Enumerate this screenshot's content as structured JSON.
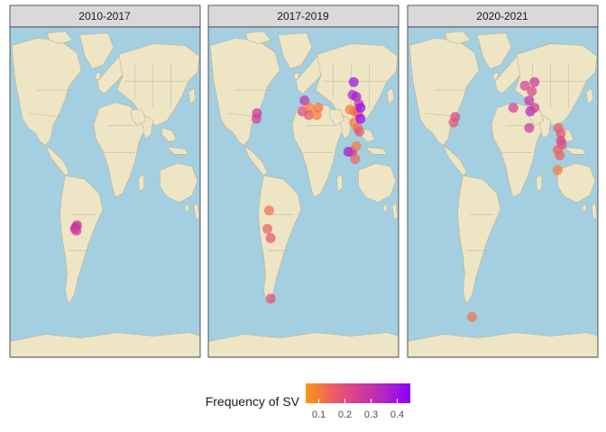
{
  "chart_data": {
    "type": "scatter",
    "kind": "faceted-world-map",
    "facets": [
      {
        "label": "2010-2017",
        "points": [
          {
            "lon": -55,
            "lat": -19,
            "value": 0.3
          },
          {
            "lon": -53,
            "lat": -18,
            "value": 0.28
          },
          {
            "lon": -57,
            "lat": -20,
            "value": 0.32
          },
          {
            "lon": -54,
            "lat": -21,
            "value": 0.25
          }
        ]
      },
      {
        "label": "2017-2019",
        "points": [
          {
            "lon": -88,
            "lat": 43,
            "value": 0.28
          },
          {
            "lon": -89,
            "lat": 40,
            "value": 0.25
          },
          {
            "lon": 2,
            "lat": 50,
            "value": 0.3
          },
          {
            "lon": -2,
            "lat": 44,
            "value": 0.22
          },
          {
            "lon": 12,
            "lat": 46,
            "value": 0.1
          },
          {
            "lon": 10,
            "lat": 42,
            "value": 0.18
          },
          {
            "lon": 25,
            "lat": 42,
            "value": 0.1
          },
          {
            "lon": 28,
            "lat": 46,
            "value": 0.12
          },
          {
            "lon": 95,
            "lat": 60,
            "value": 0.4
          },
          {
            "lon": 93,
            "lat": 53,
            "value": 0.35
          },
          {
            "lon": 100,
            "lat": 52,
            "value": 0.38
          },
          {
            "lon": 105,
            "lat": 48,
            "value": 0.3
          },
          {
            "lon": 88,
            "lat": 45,
            "value": 0.1
          },
          {
            "lon": 97,
            "lat": 44,
            "value": 0.12
          },
          {
            "lon": 103,
            "lat": 43,
            "value": 0.15
          },
          {
            "lon": 108,
            "lat": 46,
            "value": 0.42
          },
          {
            "lon": 96,
            "lat": 38,
            "value": 0.1
          },
          {
            "lon": 102,
            "lat": 35,
            "value": 0.12
          },
          {
            "lon": 106,
            "lat": 33,
            "value": 0.18
          },
          {
            "lon": 108,
            "lat": 40,
            "value": 0.45
          },
          {
            "lon": 85,
            "lat": 22,
            "value": 0.38
          },
          {
            "lon": 92,
            "lat": 22,
            "value": 0.3
          },
          {
            "lon": 100,
            "lat": 25,
            "value": 0.1
          },
          {
            "lon": 98,
            "lat": 18,
            "value": 0.14
          },
          {
            "lon": -65,
            "lat": -10,
            "value": 0.12
          },
          {
            "lon": -68,
            "lat": -20,
            "value": 0.15
          },
          {
            "lon": -62,
            "lat": -25,
            "value": 0.18
          },
          {
            "lon": -62,
            "lat": -58,
            "value": 0.2
          }
        ]
      },
      {
        "label": "2020-2021",
        "points": [
          {
            "lon": -90,
            "lat": 41,
            "value": 0.22
          },
          {
            "lon": -93,
            "lat": 38,
            "value": 0.18
          },
          {
            "lon": 20,
            "lat": 46,
            "value": 0.25
          },
          {
            "lon": 42,
            "lat": 58,
            "value": 0.25
          },
          {
            "lon": 50,
            "lat": 50,
            "value": 0.3
          },
          {
            "lon": 55,
            "lat": 55,
            "value": 0.22
          },
          {
            "lon": 60,
            "lat": 60,
            "value": 0.28
          },
          {
            "lon": 52,
            "lat": 44,
            "value": 0.35
          },
          {
            "lon": 60,
            "lat": 46,
            "value": 0.26
          },
          {
            "lon": 50,
            "lat": 35,
            "value": 0.28
          },
          {
            "lon": 105,
            "lat": 35,
            "value": 0.15
          },
          {
            "lon": 110,
            "lat": 32,
            "value": 0.18
          },
          {
            "lon": 112,
            "lat": 26,
            "value": 0.2
          },
          {
            "lon": 104,
            "lat": 23,
            "value": 0.16
          },
          {
            "lon": 108,
            "lat": 20,
            "value": 0.14
          },
          {
            "lon": 104,
            "lat": 12,
            "value": 0.1
          },
          {
            "lon": 110,
            "lat": 28,
            "value": 0.22
          },
          {
            "lon": -58,
            "lat": -68,
            "value": 0.12
          }
        ]
      }
    ],
    "legend": {
      "title": "Frequency of SV",
      "position": "bottom",
      "range": [
        0.05,
        0.45
      ],
      "ticks": [
        {
          "value": 0.1,
          "label": "0.1"
        },
        {
          "value": 0.2,
          "label": "0.2"
        },
        {
          "value": 0.3,
          "label": "0.3"
        },
        {
          "value": 0.4,
          "label": "0.4"
        }
      ],
      "colors": [
        "#ff9810",
        "#ee5e62",
        "#d43e94",
        "#b127c4",
        "#8a00ff"
      ]
    }
  },
  "colors": {
    "ocean": "#a3cfe0",
    "land": "#ede5c4",
    "strip": "#d9d9d9"
  }
}
